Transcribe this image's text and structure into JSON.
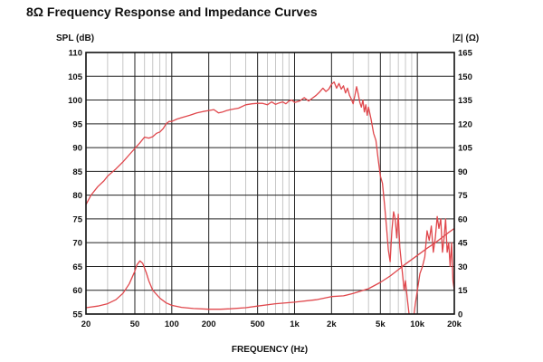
{
  "chart_data": {
    "type": "line",
    "title": "8Ω Frequency Response and Impedance Curves",
    "xlabel": "FREQUENCY (Hz)",
    "ylabel_left": "SPL (dB)",
    "ylabel_right": "|Z| (Ω)",
    "x_scale": "log",
    "xlim": [
      20,
      20000
    ],
    "ylim_left": [
      55,
      110
    ],
    "ylim_right": [
      0,
      165
    ],
    "grid": true,
    "line_color": "#e0474c",
    "x_ticks": [
      {
        "value": 20,
        "label": "20"
      },
      {
        "value": 50,
        "label": "50"
      },
      {
        "value": 100,
        "label": "100"
      },
      {
        "value": 200,
        "label": "200"
      },
      {
        "value": 500,
        "label": "500"
      },
      {
        "value": 1000,
        "label": "1k"
      },
      {
        "value": 2000,
        "label": "2k"
      },
      {
        "value": 5000,
        "label": "5k"
      },
      {
        "value": 10000,
        "label": "10k"
      },
      {
        "value": 20000,
        "label": "20k"
      }
    ],
    "y_ticks_left": [
      110,
      105,
      100,
      95,
      90,
      85,
      80,
      75,
      70,
      65,
      60,
      55
    ],
    "y_ticks_right": [
      165,
      150,
      135,
      120,
      105,
      90,
      75,
      60,
      45,
      30,
      15,
      0
    ],
    "series": [
      {
        "axis": "left",
        "x": [
          20,
          22,
          25,
          28,
          30,
          35,
          40,
          45,
          50,
          55,
          60,
          65,
          70,
          75,
          80,
          85,
          90,
          95,
          100,
          110,
          120,
          140,
          160,
          180,
          200,
          220,
          240,
          260,
          280,
          300,
          350,
          400,
          450,
          500,
          550,
          600,
          650,
          700,
          750,
          800,
          850,
          900,
          950,
          1000,
          1100,
          1200,
          1300,
          1400,
          1500,
          1600,
          1700,
          1800,
          1900,
          2000,
          2100,
          2200,
          2300,
          2400,
          2500,
          2600,
          2700,
          2800,
          2900,
          3000,
          3100,
          3200,
          3300,
          3400,
          3500,
          3600,
          3700,
          3800,
          3900,
          4000,
          4200,
          4400,
          4600,
          4800,
          5000,
          5200,
          5400,
          5600,
          5800,
          6000,
          6200,
          6400,
          6600,
          6800,
          7000,
          7200,
          7400,
          7600,
          7800,
          8000,
          8300,
          8600,
          9000,
          9300,
          9600,
          10000,
          10500,
          11000,
          11500,
          12000,
          12500,
          13000,
          13500,
          14000,
          14500,
          15000,
          15500,
          16000,
          16500,
          17000,
          17500,
          18000,
          18500,
          19000,
          19500,
          20000
        ],
        "y": [
          78,
          80,
          81.8,
          83,
          84,
          85.5,
          87,
          88.5,
          89.8,
          91,
          92.2,
          92,
          92.3,
          93,
          93.3,
          94,
          95,
          95.5,
          95.5,
          96,
          96.3,
          96.8,
          97.3,
          97.6,
          97.8,
          98,
          97.3,
          97.5,
          97.8,
          98,
          98.3,
          99,
          99.2,
          99.3,
          99.3,
          99,
          99.6,
          99.1,
          99.4,
          99.6,
          99.2,
          99.8,
          100,
          99.5,
          99.8,
          100.5,
          99.8,
          100.4,
          101,
          101.7,
          102.5,
          101.8,
          102.3,
          103.3,
          103.8,
          102.5,
          103.5,
          102.3,
          103,
          101.5,
          102.5,
          101,
          100.2,
          99.2,
          101,
          102.8,
          101.3,
          99.5,
          98.5,
          100,
          97.5,
          99,
          96.8,
          98.5,
          96,
          93,
          91.5,
          87.5,
          84,
          82.5,
          78,
          73.5,
          68.5,
          66,
          72.5,
          76.5,
          75,
          71,
          76,
          69,
          66,
          63,
          60,
          62,
          58,
          54.5,
          51,
          54,
          57,
          60,
          63.5,
          65,
          67,
          72.5,
          70.5,
          73.5,
          68,
          71,
          75.5,
          73,
          75,
          68,
          71,
          75,
          68,
          70,
          65,
          70,
          62,
          60
        ]
      },
      {
        "axis": "right",
        "x": [
          20,
          25,
          30,
          35,
          40,
          45,
          50,
          52,
          55,
          58,
          62,
          65,
          70,
          80,
          90,
          100,
          120,
          150,
          200,
          250,
          300,
          400,
          500,
          700,
          1000,
          1500,
          2000,
          2500,
          3000,
          4000,
          5000,
          6000,
          7000,
          8000,
          10000,
          12000,
          14000,
          16000,
          18000,
          20000
        ],
        "y": [
          4,
          5,
          6.5,
          9,
          13,
          19,
          27,
          31,
          33.5,
          32,
          26,
          21,
          15,
          10,
          7,
          5.5,
          4.2,
          3.5,
          3,
          3,
          3.3,
          4,
          5,
          6.5,
          7.5,
          9,
          11,
          11.5,
          13,
          16,
          20,
          24,
          28,
          31.5,
          37,
          41.5,
          45,
          48.5,
          51.5,
          54
        ]
      }
    ]
  }
}
